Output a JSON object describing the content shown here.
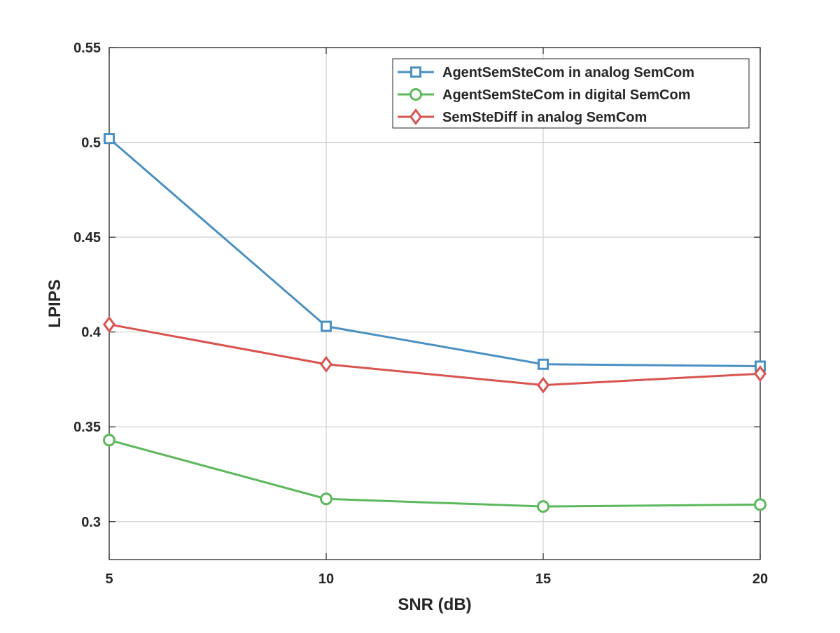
{
  "chart_data": {
    "type": "line",
    "title": "",
    "xlabel": "SNR (dB)",
    "ylabel": "LPIPS",
    "x": [
      5,
      10,
      15,
      20
    ],
    "xlim": [
      5,
      20
    ],
    "ylim": [
      0.28,
      0.55
    ],
    "xticks": [
      5,
      10,
      15,
      20
    ],
    "yticks": [
      0.3,
      0.35,
      0.4,
      0.45,
      0.5,
      0.55
    ],
    "xtick_labels": [
      "5",
      "10",
      "15",
      "20"
    ],
    "ytick_labels": [
      "0.3",
      "0.35",
      "0.4",
      "0.45",
      "0.5",
      "0.55"
    ],
    "grid": true,
    "legend_position": "top-right",
    "series": [
      {
        "name": "AgentSemSteCom in analog SemCom",
        "values": [
          0.502,
          0.403,
          0.383,
          0.382
        ],
        "color": "#4a90c2",
        "marker": "square"
      },
      {
        "name": "AgentSemSteCom in digital SemCom",
        "values": [
          0.343,
          0.312,
          0.308,
          0.309
        ],
        "color": "#5cb85c",
        "marker": "circle"
      },
      {
        "name": "SemSteDiff in analog SemCom",
        "values": [
          0.404,
          0.383,
          0.372,
          0.378
        ],
        "color": "#d9534f",
        "marker": "diamond"
      }
    ]
  }
}
